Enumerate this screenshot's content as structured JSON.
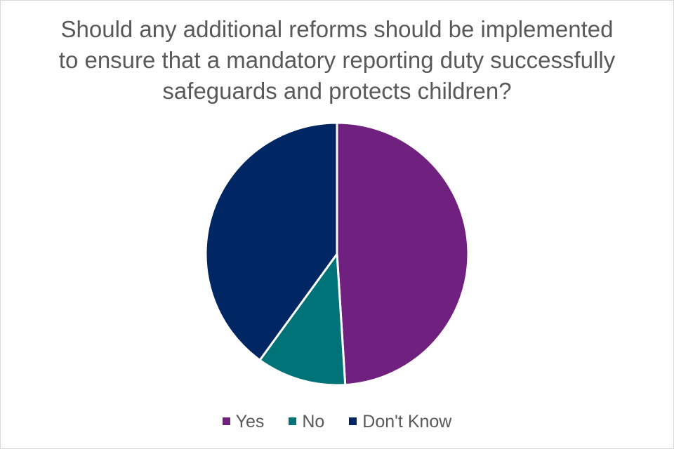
{
  "chart_data": {
    "type": "pie",
    "title_lines": [
      "Should any additional reforms should be implemented",
      "to ensure that a mandatory reporting duty successfully",
      "safeguards and protects children?"
    ],
    "slices": [
      {
        "label": "Yes",
        "value": 49,
        "color": "#70217f"
      },
      {
        "label": "No",
        "value": 11,
        "color": "#007378"
      },
      {
        "label": "Don't Know",
        "value": 40,
        "color": "#002664"
      }
    ],
    "legend_position": "bottom"
  }
}
